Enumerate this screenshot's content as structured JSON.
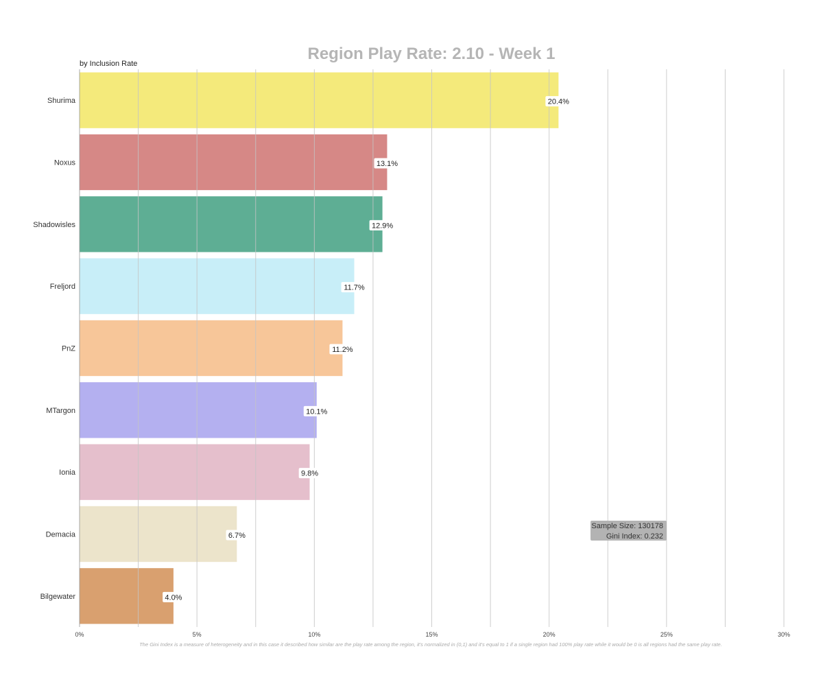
{
  "chart_data": {
    "type": "bar",
    "orientation": "horizontal",
    "title": "Region Play Rate: 2.10 - Week 1",
    "subtitle": "by Inclusion Rate",
    "categories": [
      "Shurima",
      "Noxus",
      "Shadowisles",
      "Freljord",
      "PnZ",
      "MTargon",
      "Ionia",
      "Demacia",
      "Bilgewater"
    ],
    "values": [
      20.4,
      13.1,
      12.9,
      11.7,
      11.2,
      10.1,
      9.8,
      6.7,
      4.0
    ],
    "value_labels": [
      "20.4%",
      "13.1%",
      "12.9%",
      "11.7%",
      "11.2%",
      "10.1%",
      "9.8%",
      "6.7%",
      "4.0%"
    ],
    "colors": [
      "#f4ea7b",
      "#d68886",
      "#5eae94",
      "#c8eef8",
      "#f7c699",
      "#b4b0f0",
      "#e5bfcc",
      "#ece4cb",
      "#d9a06f"
    ],
    "xlim": [
      0,
      30
    ],
    "x_ticks": [
      0,
      5,
      10,
      15,
      20,
      25,
      30
    ],
    "x_tick_labels": [
      "0%",
      "5%",
      "10%",
      "15%",
      "20%",
      "25%",
      "30%"
    ],
    "grid": true,
    "stats": {
      "sample_size": "Sample Size: 130178",
      "gini_index": "Gini Index: 0.232"
    },
    "footnote": "The Gini Index is a measure of heterogeneity and in this case it described how similar are the play rate among the region, it's normalized in (0,1) and it's equal to 1 if a single region had 100% play rate while it would be 0 is all regions had the same play rate."
  }
}
